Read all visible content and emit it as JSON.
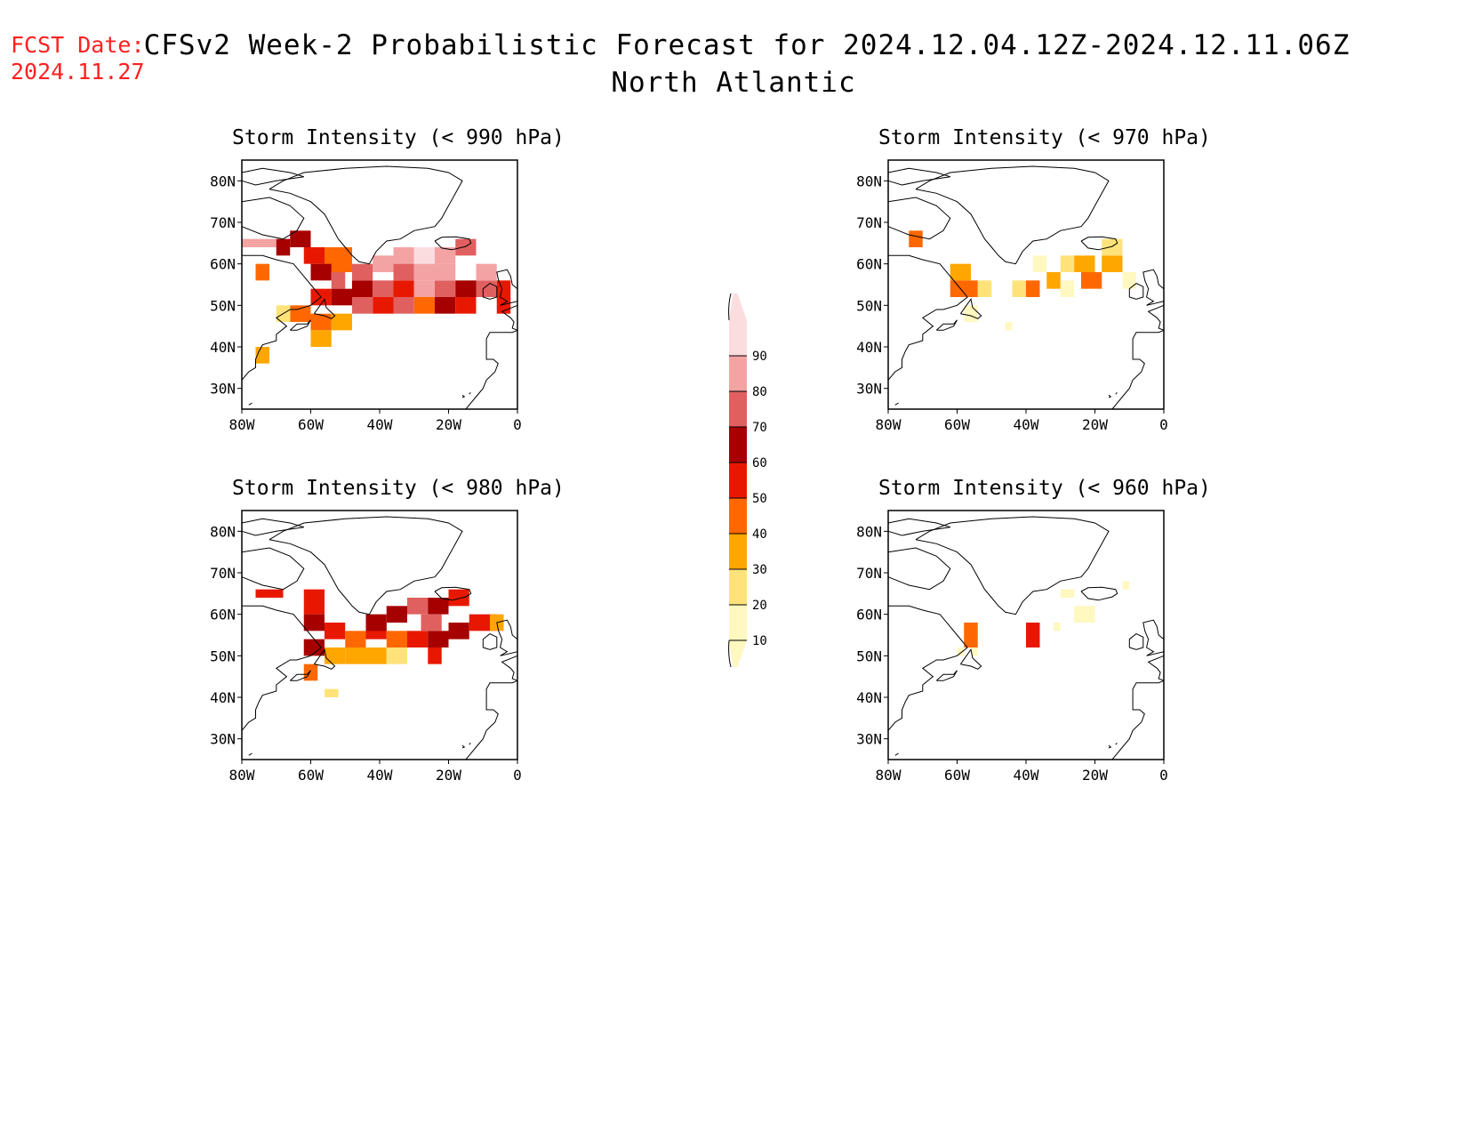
{
  "header": {
    "fcst_label": "FCST Date:",
    "fcst_date": "2024.11.27",
    "title": "CFSv2 Week-2 Probabilistic Forecast for 2024.12.04.12Z-2024.12.11.06Z",
    "subtitle": "North Atlantic"
  },
  "axes": {
    "lat_labels": [
      "80N",
      "70N",
      "60N",
      "50N",
      "40N",
      "30N"
    ],
    "lon_labels": [
      "80W",
      "60W",
      "40W",
      "20W",
      "0"
    ],
    "lat_values": [
      80,
      70,
      60,
      50,
      40,
      30
    ],
    "lon_values": [
      -80,
      -60,
      -40,
      -20,
      0
    ],
    "lon_range": [
      -80,
      0
    ],
    "lat_range": [
      25,
      85
    ]
  },
  "colorbar": {
    "levels": [
      "10",
      "20",
      "30",
      "40",
      "50",
      "60",
      "70",
      "80",
      "90"
    ],
    "colors": [
      "#fff8c0",
      "#ffe37a",
      "#ffa600",
      "#ff6800",
      "#e81800",
      "#a60000",
      "#e06060",
      "#f4a3a3",
      "#fbdde0"
    ]
  },
  "panels": [
    {
      "id": "p990",
      "title": "Storm Intensity (< 990 hPa)",
      "cells": [
        [
          -80,
          66,
          -70,
          64,
          8
        ],
        [
          -70,
          66,
          -66,
          62,
          6
        ],
        [
          -66,
          68,
          -60,
          64,
          6
        ],
        [
          -62,
          64,
          -56,
          60,
          5
        ],
        [
          -56,
          64,
          -48,
          58,
          4
        ],
        [
          -60,
          60,
          -54,
          56,
          6
        ],
        [
          -54,
          58,
          -50,
          54,
          7
        ],
        [
          -48,
          56,
          -42,
          52,
          6
        ],
        [
          -42,
          56,
          -36,
          52,
          7
        ],
        [
          -36,
          56,
          -30,
          52,
          5
        ],
        [
          -30,
          56,
          -24,
          52,
          8
        ],
        [
          -24,
          56,
          -18,
          52,
          7
        ],
        [
          -18,
          56,
          -12,
          52,
          6
        ],
        [
          -12,
          56,
          -6,
          52,
          7
        ],
        [
          -42,
          62,
          -36,
          58,
          8
        ],
        [
          -36,
          64,
          -30,
          60,
          8
        ],
        [
          -30,
          64,
          -24,
          60,
          9
        ],
        [
          -24,
          64,
          -18,
          60,
          8
        ],
        [
          -18,
          66,
          -12,
          62,
          7
        ],
        [
          -36,
          60,
          -30,
          56,
          7
        ],
        [
          -24,
          60,
          -18,
          56,
          8
        ],
        [
          -12,
          60,
          -6,
          56,
          8
        ],
        [
          -60,
          54,
          -54,
          50,
          5
        ],
        [
          -54,
          54,
          -48,
          50,
          6
        ],
        [
          -48,
          52,
          -42,
          48,
          7
        ],
        [
          -42,
          52,
          -36,
          48,
          5
        ],
        [
          -36,
          52,
          -30,
          48,
          7
        ],
        [
          -30,
          52,
          -24,
          48,
          4
        ],
        [
          -24,
          52,
          -18,
          48,
          6
        ],
        [
          -18,
          52,
          -12,
          48,
          5
        ],
        [
          -66,
          50,
          -60,
          46,
          4
        ],
        [
          -60,
          48,
          -54,
          44,
          4
        ],
        [
          -54,
          48,
          -48,
          44,
          3
        ],
        [
          -60,
          44,
          -54,
          40,
          3
        ],
        [
          -76,
          40,
          -72,
          36,
          3
        ],
        [
          -76,
          60,
          -72,
          56,
          4
        ],
        [
          -6,
          56,
          -2,
          48,
          5
        ],
        [
          -70,
          50,
          -66,
          46,
          2
        ],
        [
          -48,
          60,
          -42,
          56,
          7
        ],
        [
          -30,
          60,
          -24,
          56,
          8
        ]
      ]
    },
    {
      "id": "p970",
      "title": "Storm Intensity (< 970 hPa)",
      "cells": [
        [
          -74,
          68,
          -70,
          64,
          4
        ],
        [
          -62,
          60,
          -56,
          56,
          3
        ],
        [
          -62,
          56,
          -54,
          52,
          4
        ],
        [
          -54,
          56,
          -50,
          52,
          2
        ],
        [
          -44,
          56,
          -40,
          52,
          2
        ],
        [
          -40,
          56,
          -36,
          52,
          4
        ],
        [
          -34,
          58,
          -30,
          54,
          3
        ],
        [
          -30,
          62,
          -26,
          58,
          2
        ],
        [
          -26,
          62,
          -20,
          58,
          3
        ],
        [
          -24,
          58,
          -18,
          54,
          4
        ],
        [
          -18,
          62,
          -12,
          58,
          3
        ],
        [
          -18,
          66,
          -12,
          62,
          2
        ],
        [
          -58,
          50,
          -54,
          46,
          1
        ],
        [
          -46,
          46,
          -44,
          44,
          1
        ],
        [
          -12,
          58,
          -8,
          54,
          1
        ],
        [
          -30,
          56,
          -26,
          52,
          1
        ],
        [
          -38,
          62,
          -34,
          58,
          1
        ]
      ]
    },
    {
      "id": "p980",
      "title": "Storm Intensity (< 980 hPa)",
      "cells": [
        [
          -76,
          66,
          -68,
          64,
          5
        ],
        [
          -62,
          66,
          -56,
          60,
          5
        ],
        [
          -62,
          60,
          -56,
          56,
          6
        ],
        [
          -56,
          58,
          -50,
          54,
          5
        ],
        [
          -50,
          56,
          -44,
          52,
          4
        ],
        [
          -44,
          58,
          -38,
          54,
          5
        ],
        [
          -38,
          62,
          -32,
          58,
          6
        ],
        [
          -32,
          64,
          -26,
          60,
          7
        ],
        [
          -26,
          64,
          -20,
          60,
          6
        ],
        [
          -20,
          66,
          -14,
          62,
          5
        ],
        [
          -38,
          56,
          -32,
          52,
          4
        ],
        [
          -32,
          56,
          -26,
          52,
          5
        ],
        [
          -26,
          56,
          -20,
          52,
          6
        ],
        [
          -20,
          58,
          -14,
          54,
          6
        ],
        [
          -14,
          60,
          -6,
          56,
          5
        ],
        [
          -62,
          54,
          -56,
          50,
          6
        ],
        [
          -56,
          52,
          -50,
          48,
          3
        ],
        [
          -50,
          52,
          -44,
          48,
          3
        ],
        [
          -44,
          52,
          -38,
          48,
          3
        ],
        [
          -38,
          52,
          -32,
          48,
          2
        ],
        [
          -62,
          48,
          -58,
          44,
          4
        ],
        [
          -26,
          52,
          -22,
          48,
          5
        ],
        [
          -56,
          42,
          -52,
          40,
          2
        ],
        [
          -8,
          60,
          -4,
          56,
          3
        ],
        [
          -44,
          60,
          -38,
          56,
          6
        ],
        [
          -28,
          60,
          -22,
          56,
          7
        ]
      ]
    },
    {
      "id": "p960",
      "title": "Storm Intensity (< 960 hPa)",
      "cells": [
        [
          -58,
          58,
          -54,
          52,
          4
        ],
        [
          -40,
          58,
          -36,
          52,
          5
        ],
        [
          -56,
          52,
          -54,
          50,
          1
        ],
        [
          -30,
          66,
          -26,
          64,
          1
        ],
        [
          -26,
          62,
          -20,
          58,
          1
        ],
        [
          -32,
          58,
          -30,
          56,
          1
        ],
        [
          -12,
          68,
          -10,
          66,
          1
        ],
        [
          -60,
          52,
          -58,
          50,
          1
        ]
      ]
    }
  ]
}
